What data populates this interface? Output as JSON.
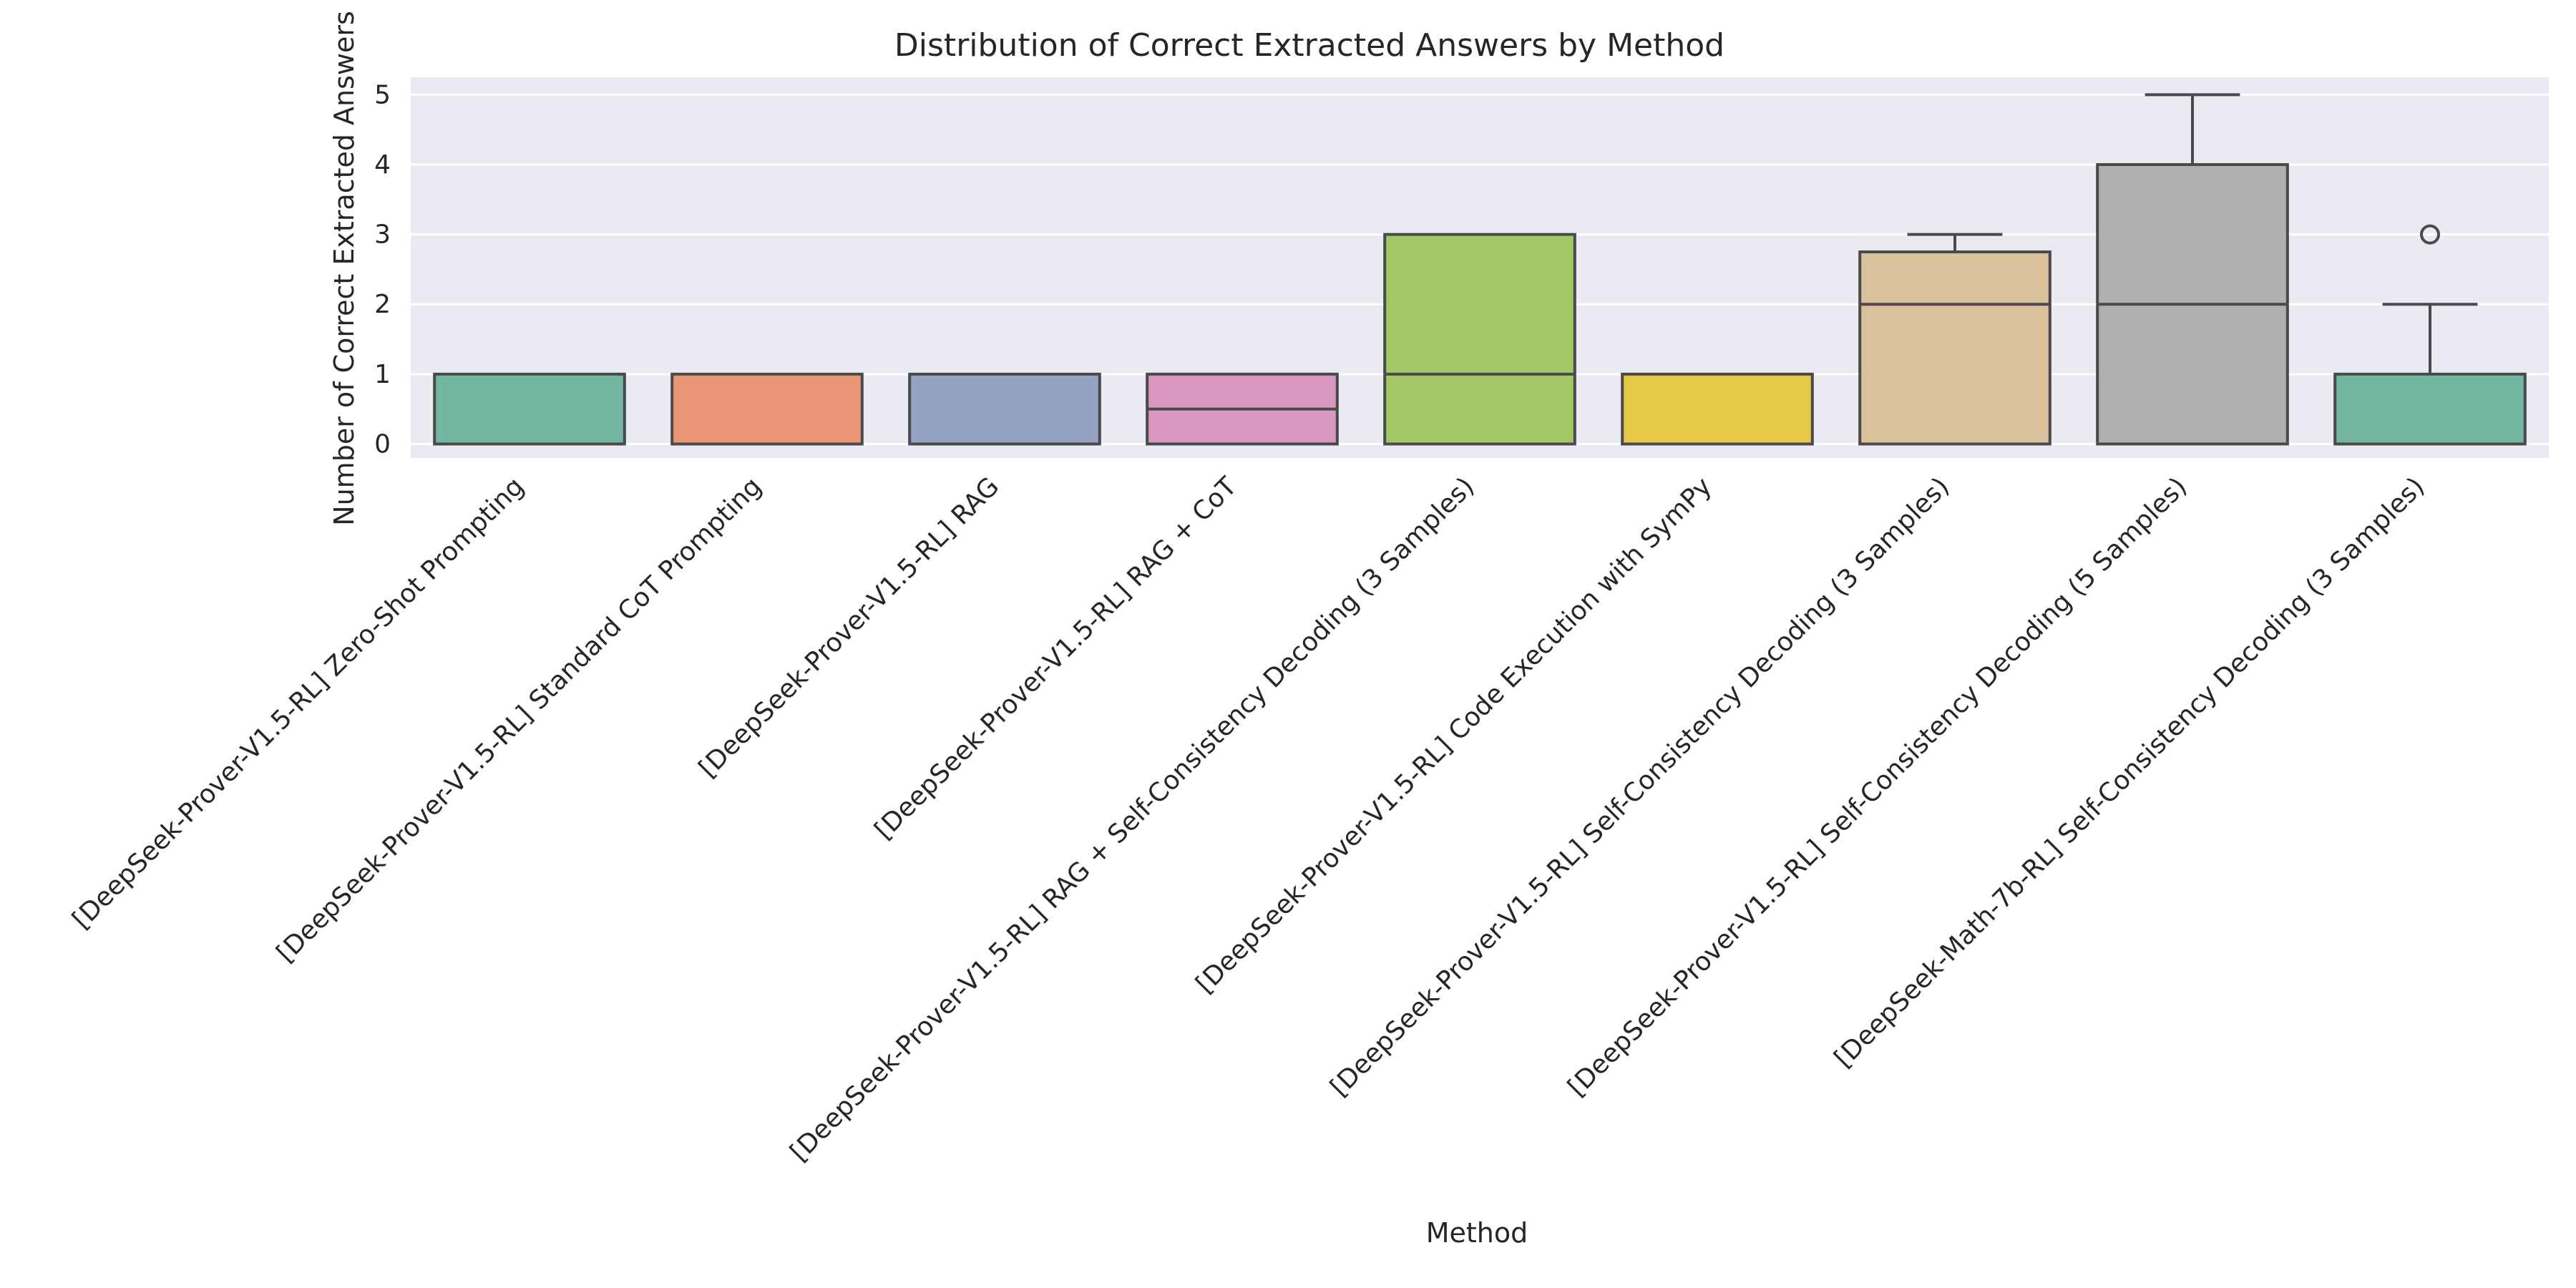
{
  "chart_data": {
    "type": "box",
    "title": "Distribution of Correct Extracted Answers by Method",
    "xlabel": "Method",
    "ylabel": "Number of Correct Extracted Answers",
    "ylim": [
      -0.2,
      5.25
    ],
    "yticks": [
      "0",
      "1",
      "2",
      "3",
      "4",
      "5"
    ],
    "grid": true,
    "legend": "none",
    "categories": [
      "[DeepSeek-Prover-V1.5-RL] Zero-Shot Prompting",
      "[DeepSeek-Prover-V1.5-RL] Standard CoT Prompting",
      "[DeepSeek-Prover-V1.5-RL] RAG",
      "[DeepSeek-Prover-V1.5-RL] RAG + CoT",
      "[DeepSeek-Prover-V1.5-RL] RAG + Self-Consistency Decoding (3 Samples)",
      "[DeepSeek-Prover-V1.5-RL] Code Execution with SymPy",
      "[DeepSeek-Prover-V1.5-RL] Self-Consistency Decoding (3 Samples)",
      "[DeepSeek-Prover-V1.5-RL] Self-Consistency Decoding (5 Samples)",
      "[DeepSeek-Math-7b-RL] Self-Consistency Decoding (3 Samples)"
    ],
    "boxes": [
      {
        "whisker_low": 0,
        "q1": 0,
        "median": 0,
        "q3": 1,
        "whisker_high": 1,
        "outliers": [],
        "color": "#72b6a1"
      },
      {
        "whisker_low": 0,
        "q1": 0,
        "median": 0,
        "q3": 1,
        "whisker_high": 1,
        "outliers": [],
        "color": "#e99675"
      },
      {
        "whisker_low": 0,
        "q1": 0,
        "median": 0,
        "q3": 1,
        "whisker_high": 1,
        "outliers": [],
        "color": "#95a3c3"
      },
      {
        "whisker_low": 0,
        "q1": 0,
        "median": 0.5,
        "q3": 1,
        "whisker_high": 1,
        "outliers": [],
        "color": "#db96c0"
      },
      {
        "whisker_low": 0,
        "q1": 0,
        "median": 1,
        "q3": 3,
        "whisker_high": 3,
        "outliers": [],
        "color": "#a2c865"
      },
      {
        "whisker_low": 0,
        "q1": 0,
        "median": 0,
        "q3": 1,
        "whisker_high": 1,
        "outliers": [],
        "color": "#e5c847"
      },
      {
        "whisker_low": 0,
        "q1": 0,
        "median": 2,
        "q3": 2.75,
        "whisker_high": 3,
        "outliers": [],
        "color": "#d9c19b"
      },
      {
        "whisker_low": 0,
        "q1": 0,
        "median": 2,
        "q3": 4,
        "whisker_high": 5,
        "outliers": [],
        "color": "#b0b0b0"
      },
      {
        "whisker_low": 0,
        "q1": 0,
        "median": 0,
        "q3": 1,
        "whisker_high": 2,
        "outliers": [
          3
        ],
        "color": "#72b6a1"
      }
    ]
  }
}
